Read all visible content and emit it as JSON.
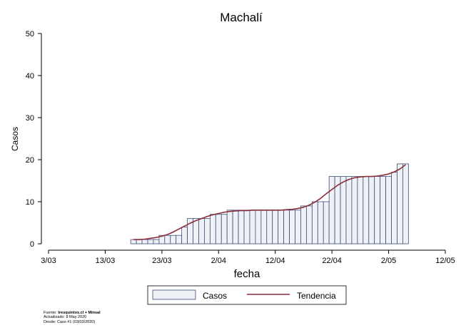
{
  "chart_data": {
    "type": "bar",
    "title": "Machalí",
    "xlabel": "fecha",
    "ylabel": "Casos",
    "ylim": [
      0,
      50
    ],
    "yticks": [
      0,
      10,
      20,
      30,
      40,
      50
    ],
    "x_start_date": "2020-03-03",
    "x_end_date": "2020-05-12",
    "xticks": [
      "3/03",
      "13/03",
      "23/03",
      "2/04",
      "12/04",
      "22/04",
      "2/05",
      "12/05"
    ],
    "grid": false,
    "legend_position": "bottom",
    "series": [
      {
        "name": "Casos",
        "kind": "bar",
        "fill": "#eef1f6",
        "stroke": "#3f4f7a",
        "start_date": "2020-03-18",
        "values": [
          1,
          1,
          1,
          1,
          1,
          2,
          2,
          2,
          2,
          4,
          6,
          6,
          6,
          6,
          7,
          7,
          7,
          8,
          8,
          8,
          8,
          8,
          8,
          8,
          8,
          8,
          8,
          8,
          8,
          8,
          9,
          9,
          10,
          10,
          10,
          16,
          16,
          16,
          16,
          16,
          16,
          16,
          16,
          16,
          16,
          16,
          17,
          19,
          19
        ]
      },
      {
        "name": "Tendencia",
        "kind": "line",
        "color": "#8b2c3a",
        "start_date": "2020-03-18",
        "values": [
          1.0,
          1.0,
          1.1,
          1.3,
          1.5,
          1.8,
          2.2,
          2.8,
          3.5,
          4.2,
          4.9,
          5.5,
          6.0,
          6.5,
          6.9,
          7.2,
          7.5,
          7.7,
          7.8,
          7.9,
          7.9,
          8.0,
          8.0,
          8.0,
          8.0,
          8.0,
          8.0,
          8.1,
          8.2,
          8.4,
          8.7,
          9.2,
          9.9,
          10.8,
          11.9,
          12.9,
          13.9,
          14.7,
          15.3,
          15.7,
          15.9,
          16.0,
          16.0,
          16.1,
          16.3,
          16.6,
          17.1,
          17.8,
          18.8
        ]
      }
    ],
    "legend": [
      {
        "label": "Casos",
        "kind": "bar"
      },
      {
        "label": "Tendencia",
        "kind": "line"
      }
    ]
  },
  "footer": {
    "source_label": "Fuente: ",
    "source_value": "tresquintos.cl + Minsal",
    "updated": "Actualizado: 8 May 2020",
    "since": "Desde: Caso #1  (03/03/2020)"
  }
}
